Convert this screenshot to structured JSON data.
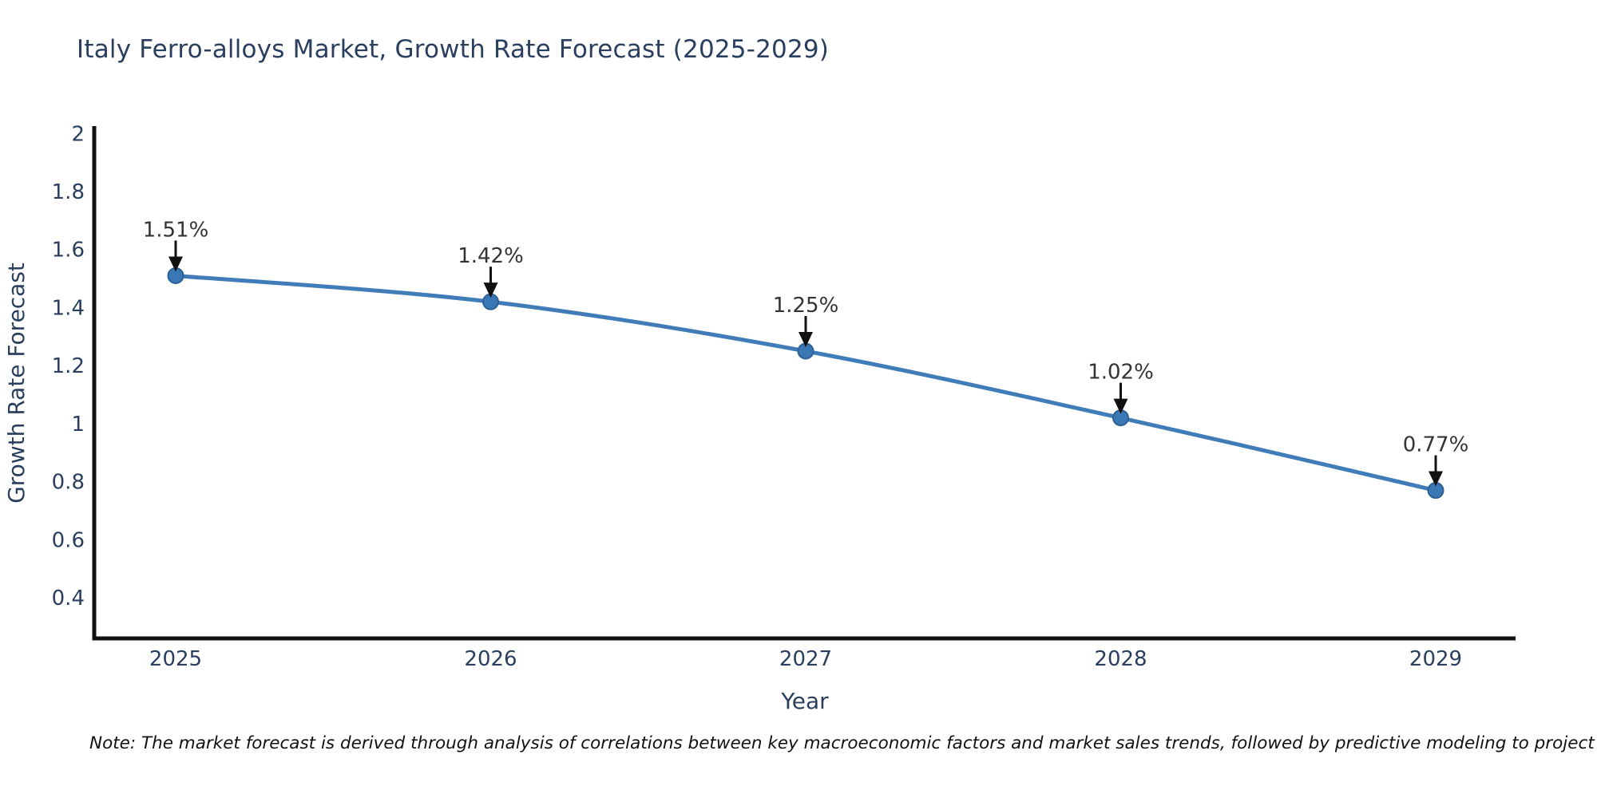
{
  "note": "Note: The market forecast is derived through analysis of correlations between key macroeconomic factors and market sales trends, followed by predictive modeling to project future sales",
  "chart_data": {
    "type": "line",
    "title": "Italy Ferro-alloys Market, Growth Rate Forecast (2025-2029)",
    "x": [
      "2025",
      "2026",
      "2027",
      "2028",
      "2029"
    ],
    "values": [
      1.51,
      1.42,
      1.25,
      1.02,
      0.77
    ],
    "data_labels": [
      "1.51%",
      "1.42%",
      "1.25%",
      "1.02%",
      "0.77%"
    ],
    "xlabel": "Year",
    "ylabel": "Growth Rate Forecast",
    "yticks": [
      2,
      1.8,
      1.6,
      1.4,
      1.2,
      1,
      0.8,
      0.6,
      0.4
    ],
    "ylim": [
      0.26,
      2.02
    ],
    "grid": false,
    "legend": "none",
    "line_shape": "spline",
    "annotation_arrows": true,
    "colors": {
      "line": "#3f7cb8",
      "marker_fill": "#3a77b5",
      "marker_stroke": "#2d6095",
      "axis": "#111111",
      "tick_text": "#2a3f5f",
      "annotation_text": "#333333",
      "arrow": "#111111",
      "title_text": "#2a3f5f"
    }
  }
}
